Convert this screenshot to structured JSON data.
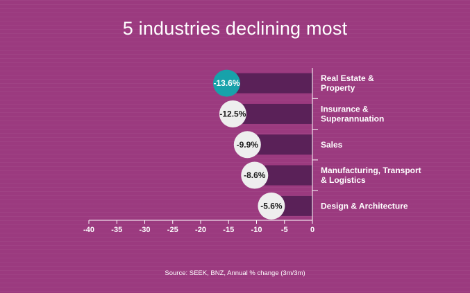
{
  "chart_data": {
    "type": "bar",
    "orientation": "horizontal",
    "title": "5 industries declining most",
    "categories": [
      [
        "Real Estate &",
        "Property"
      ],
      [
        "Insurance &",
        "Superannuation"
      ],
      [
        "Sales"
      ],
      [
        "Manufacturing, Transport",
        "& Logistics"
      ],
      [
        "Design & Architecture"
      ]
    ],
    "values": [
      -13.6,
      -12.5,
      -9.9,
      -8.6,
      -5.6
    ],
    "data_labels": [
      "-13.6%",
      "-12.5%",
      "-9.9%",
      "-8.6%",
      "-5.6%"
    ],
    "highlight_index": 0,
    "xlim": [
      -40,
      0
    ],
    "xticks": [
      -40,
      -35,
      -30,
      -25,
      -20,
      -15,
      -10,
      -5,
      0
    ],
    "grid": false,
    "source": "Source: SEEK, BNZ, Annual % change (3m/3m)",
    "colors": {
      "background": "#9b3a7f",
      "bar": "#5a2158",
      "bubble": "#eeeeee",
      "bubble_highlight": "#17a2aa",
      "bubble_text": "#1a1a1a",
      "bubble_text_highlight": "#ffffff",
      "text": "#ffffff",
      "axis": "#ffffff"
    }
  }
}
